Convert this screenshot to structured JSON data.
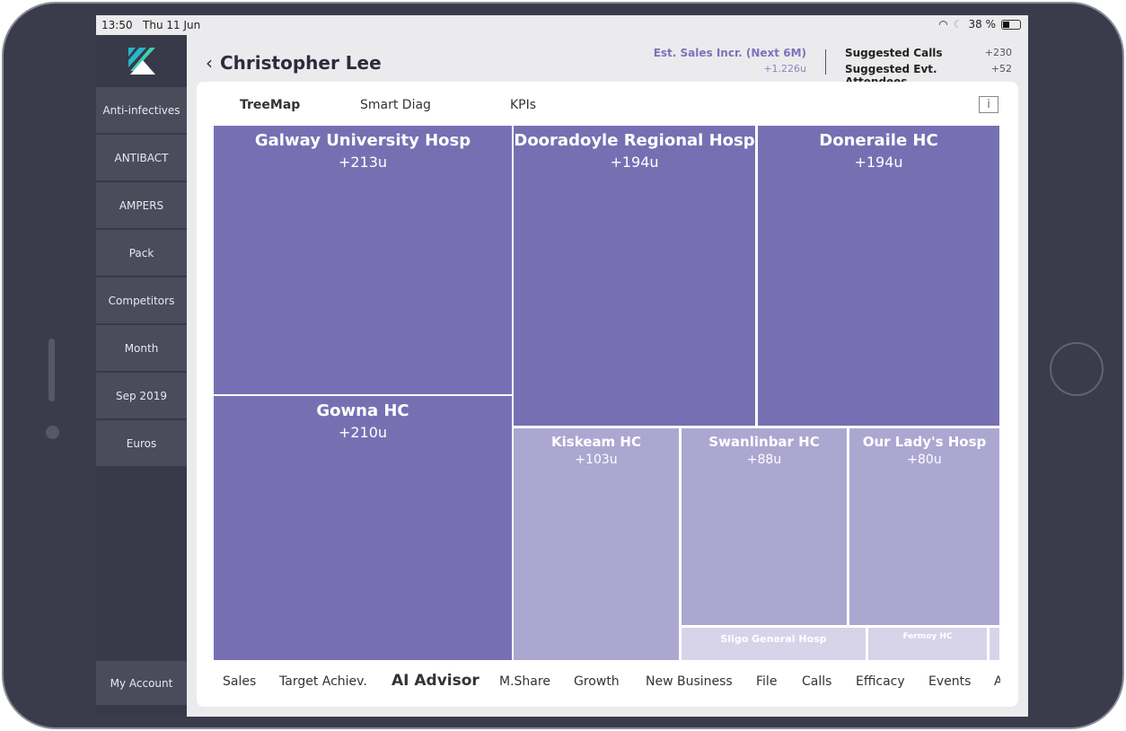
{
  "status": {
    "time": "13:50",
    "date": "Thu 11 Jun",
    "battery": "38 %"
  },
  "sidebar": {
    "items": [
      "Anti-infectives",
      "ANTIBACT",
      "AMPERS",
      "Pack",
      "Competitors",
      "Month",
      "Sep 2019",
      "Euros"
    ],
    "account": "My Account"
  },
  "header": {
    "title": "Christopher Lee",
    "est_label": "Est. Sales Incr. (Next 6M)",
    "est_value": "+1.226u",
    "calls_label": "Suggested Calls",
    "calls_value": "+230",
    "attendees_label": "Suggested Evt. Attendees",
    "attendees_value": "+52"
  },
  "tabs": [
    "TreeMap",
    "Smart Diag",
    "KPIs"
  ],
  "info": "i",
  "treemap": [
    {
      "name": "Galway University Hosp",
      "value": "+213u"
    },
    {
      "name": "Gowna HC",
      "value": "+210u"
    },
    {
      "name": "Dooradoyle Regional Hosp",
      "value": "+194u"
    },
    {
      "name": "Doneraile HC",
      "value": "+194u"
    },
    {
      "name": "Kiskeam HC",
      "value": "+103u"
    },
    {
      "name": "Swanlinbar HC",
      "value": "+88u"
    },
    {
      "name": "Our Lady's Hosp",
      "value": "+80u"
    },
    {
      "name": "Sligo General Hosp"
    },
    {
      "name": "Fermoy HC"
    }
  ],
  "bottom_tabs": [
    "Sales",
    "Target Achiev.",
    "AI Advisor",
    "M.Share",
    "Growth",
    "New Business",
    "File",
    "Calls",
    "Efficacy",
    "Events",
    "A"
  ],
  "colors": {
    "high": "#7670b3",
    "mid": "#aca7d1",
    "low": "#d7d4e9"
  }
}
